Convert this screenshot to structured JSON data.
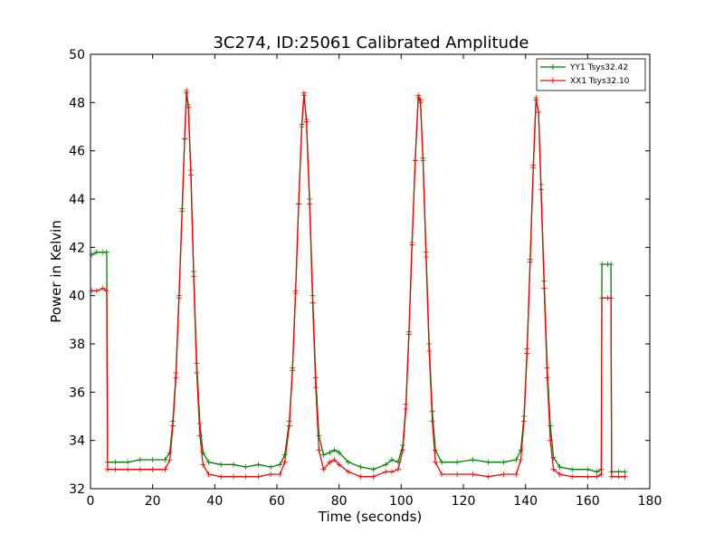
{
  "chart_data": {
    "type": "line",
    "title": "3C274, ID:25061 Calibrated Amplitude",
    "xlabel": "Time (seconds)",
    "ylabel": "Power in Kelvin",
    "xlim": [
      0,
      180
    ],
    "ylim": [
      32,
      50
    ],
    "xticks": [
      "0",
      "20",
      "40",
      "60",
      "80",
      "100",
      "120",
      "140",
      "160",
      "180"
    ],
    "yticks": [
      "32",
      "34",
      "36",
      "38",
      "40",
      "42",
      "44",
      "46",
      "48",
      "50"
    ],
    "grid": false,
    "legend_position": "top-right",
    "markers": "plus",
    "series": [
      {
        "name": "YY1 Tsys32.42",
        "color": "#008000",
        "points": [
          [
            0.5,
            41.7
          ],
          [
            2,
            41.8
          ],
          [
            4,
            41.8
          ],
          [
            5.2,
            41.8
          ],
          [
            5.5,
            33.1
          ],
          [
            8,
            33.1
          ],
          [
            12,
            33.1
          ],
          [
            16,
            33.2
          ],
          [
            20,
            33.2
          ],
          [
            24,
            33.2
          ],
          [
            25.5,
            33.5
          ],
          [
            26.5,
            34.8
          ],
          [
            27.5,
            36.8
          ],
          [
            28.5,
            40.0
          ],
          [
            29.5,
            43.6
          ],
          [
            30.3,
            46.5
          ],
          [
            30.9,
            48.4
          ],
          [
            31.5,
            47.9
          ],
          [
            32.3,
            45.2
          ],
          [
            33.2,
            41.0
          ],
          [
            34.2,
            37.2
          ],
          [
            35.2,
            34.7
          ],
          [
            36.2,
            33.5
          ],
          [
            38,
            33.1
          ],
          [
            42,
            33.0
          ],
          [
            46,
            33.0
          ],
          [
            50,
            32.9
          ],
          [
            54,
            33.0
          ],
          [
            58,
            32.9
          ],
          [
            61,
            33.0
          ],
          [
            62.5,
            33.4
          ],
          [
            64,
            34.8
          ],
          [
            65,
            37.0
          ],
          [
            66,
            40.2
          ],
          [
            67,
            43.8
          ],
          [
            68,
            47.0
          ],
          [
            68.7,
            48.3
          ],
          [
            69.5,
            47.3
          ],
          [
            70.5,
            44.0
          ],
          [
            71.5,
            40.0
          ],
          [
            72.5,
            36.6
          ],
          [
            73.5,
            34.2
          ],
          [
            75,
            33.4
          ],
          [
            77,
            33.5
          ],
          [
            78.5,
            33.6
          ],
          [
            80,
            33.5
          ],
          [
            83,
            33.1
          ],
          [
            87,
            32.9
          ],
          [
            91,
            32.8
          ],
          [
            95,
            33.0
          ],
          [
            97,
            33.2
          ],
          [
            99,
            33.1
          ],
          [
            100.5,
            33.8
          ],
          [
            101.5,
            35.5
          ],
          [
            102.5,
            38.5
          ],
          [
            103.5,
            42.2
          ],
          [
            104.5,
            45.6
          ],
          [
            105.5,
            48.2
          ],
          [
            106.2,
            48.0
          ],
          [
            107,
            45.7
          ],
          [
            108,
            41.8
          ],
          [
            109,
            38.0
          ],
          [
            110,
            35.2
          ],
          [
            111,
            33.6
          ],
          [
            113,
            33.1
          ],
          [
            118,
            33.1
          ],
          [
            123,
            33.2
          ],
          [
            128,
            33.1
          ],
          [
            133,
            33.1
          ],
          [
            137,
            33.2
          ],
          [
            138.5,
            33.6
          ],
          [
            139.5,
            35.0
          ],
          [
            140.5,
            37.8
          ],
          [
            141.5,
            41.5
          ],
          [
            142.5,
            45.3
          ],
          [
            143.4,
            48.1
          ],
          [
            144.2,
            47.6
          ],
          [
            145,
            44.6
          ],
          [
            146,
            40.6
          ],
          [
            147,
            37.0
          ],
          [
            148,
            34.6
          ],
          [
            149,
            33.3
          ],
          [
            151,
            32.9
          ],
          [
            155,
            32.8
          ],
          [
            160,
            32.8
          ],
          [
            163,
            32.7
          ],
          [
            164.4,
            32.8
          ],
          [
            164.6,
            41.3
          ],
          [
            166.5,
            41.3
          ],
          [
            167.5,
            41.3
          ],
          [
            167.7,
            32.7
          ],
          [
            170,
            32.7
          ],
          [
            172,
            32.7
          ]
        ]
      },
      {
        "name": "XX1 Tsys32.10",
        "color": "#ff0000",
        "points": [
          [
            0.5,
            40.2
          ],
          [
            2,
            40.2
          ],
          [
            4,
            40.3
          ],
          [
            5.2,
            40.2
          ],
          [
            5.5,
            32.8
          ],
          [
            8,
            32.8
          ],
          [
            12,
            32.8
          ],
          [
            16,
            32.8
          ],
          [
            20,
            32.8
          ],
          [
            24,
            32.8
          ],
          [
            25.5,
            33.2
          ],
          [
            26.5,
            34.6
          ],
          [
            27.5,
            36.6
          ],
          [
            28.5,
            39.9
          ],
          [
            29.5,
            43.5
          ],
          [
            30.3,
            46.5
          ],
          [
            30.9,
            48.5
          ],
          [
            31.5,
            47.8
          ],
          [
            32.3,
            45.0
          ],
          [
            33.2,
            40.8
          ],
          [
            34.2,
            36.8
          ],
          [
            35.2,
            34.2
          ],
          [
            36.2,
            33.0
          ],
          [
            38,
            32.6
          ],
          [
            42,
            32.5
          ],
          [
            46,
            32.5
          ],
          [
            50,
            32.5
          ],
          [
            54,
            32.5
          ],
          [
            58,
            32.6
          ],
          [
            61,
            32.6
          ],
          [
            62.5,
            33.1
          ],
          [
            64,
            34.6
          ],
          [
            65,
            36.9
          ],
          [
            66,
            40.1
          ],
          [
            67,
            43.8
          ],
          [
            68,
            47.1
          ],
          [
            68.7,
            48.4
          ],
          [
            69.5,
            47.2
          ],
          [
            70.5,
            43.8
          ],
          [
            71.5,
            39.7
          ],
          [
            72.5,
            36.2
          ],
          [
            73.5,
            33.6
          ],
          [
            75,
            32.8
          ],
          [
            77,
            33.1
          ],
          [
            78.5,
            33.2
          ],
          [
            80,
            33.0
          ],
          [
            83,
            32.7
          ],
          [
            87,
            32.5
          ],
          [
            91,
            32.5
          ],
          [
            95,
            32.7
          ],
          [
            97,
            32.7
          ],
          [
            99,
            32.8
          ],
          [
            100.5,
            33.6
          ],
          [
            101.5,
            35.3
          ],
          [
            102.5,
            38.4
          ],
          [
            103.5,
            42.1
          ],
          [
            104.5,
            45.6
          ],
          [
            105.5,
            48.3
          ],
          [
            106.2,
            48.1
          ],
          [
            107,
            45.6
          ],
          [
            108,
            41.6
          ],
          [
            109,
            37.7
          ],
          [
            110,
            34.8
          ],
          [
            111,
            33.1
          ],
          [
            113,
            32.6
          ],
          [
            118,
            32.6
          ],
          [
            123,
            32.6
          ],
          [
            128,
            32.5
          ],
          [
            133,
            32.6
          ],
          [
            137,
            32.6
          ],
          [
            138.5,
            33.2
          ],
          [
            139.5,
            34.8
          ],
          [
            140.5,
            37.6
          ],
          [
            141.5,
            41.4
          ],
          [
            142.5,
            45.4
          ],
          [
            143.4,
            48.2
          ],
          [
            144.2,
            47.6
          ],
          [
            145,
            44.4
          ],
          [
            146,
            40.3
          ],
          [
            147,
            36.6
          ],
          [
            148,
            34.0
          ],
          [
            149,
            32.8
          ],
          [
            151,
            32.6
          ],
          [
            155,
            32.5
          ],
          [
            160,
            32.5
          ],
          [
            163,
            32.5
          ],
          [
            164.4,
            32.6
          ],
          [
            164.6,
            39.9
          ],
          [
            166.5,
            39.9
          ],
          [
            167.5,
            39.9
          ],
          [
            167.7,
            32.5
          ],
          [
            170,
            32.5
          ],
          [
            172,
            32.5
          ]
        ]
      }
    ]
  }
}
